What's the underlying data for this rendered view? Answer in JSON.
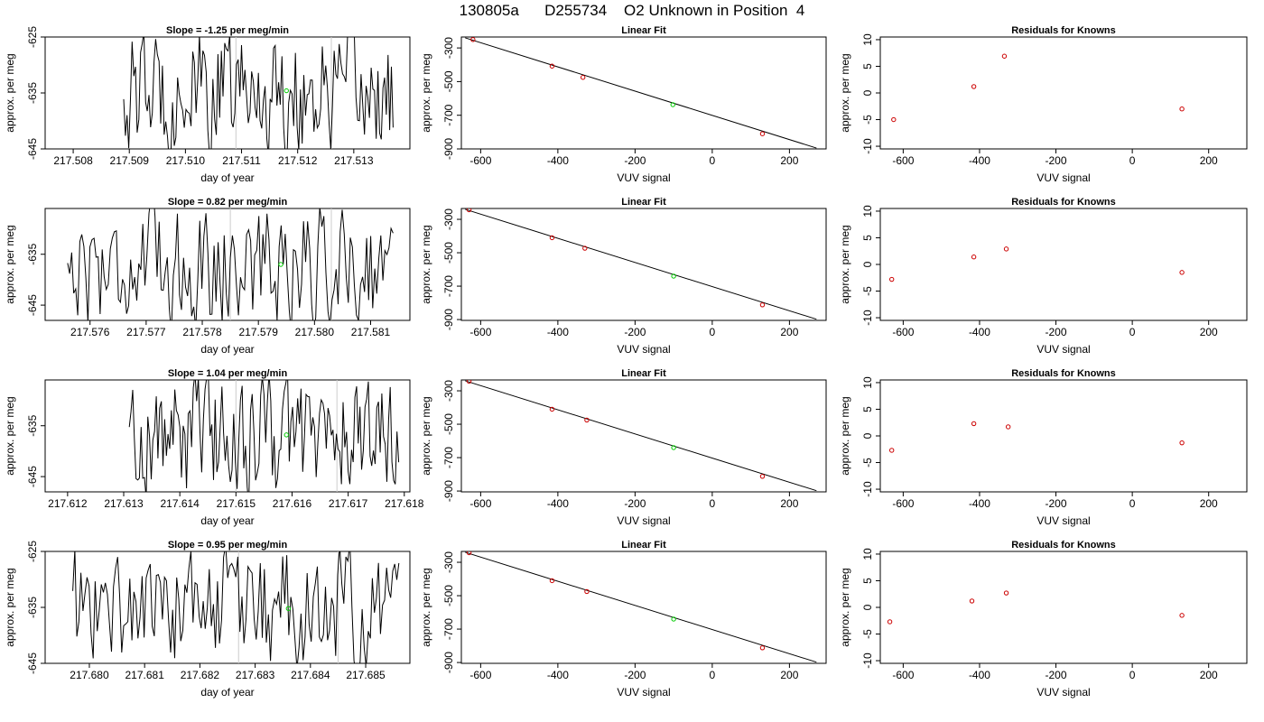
{
  "page": {
    "title": "130805a      D255734    O2 Unknown in Position  4"
  },
  "chart_data": [
    {
      "type": "line",
      "panel": "timeseries",
      "title": "Slope =  -1.25  per meg/min",
      "xlabel": "day of year",
      "ylabel": "approx. per meg",
      "xlim": [
        217.5075,
        217.514
      ],
      "ylim": [
        -645,
        -625
      ],
      "xticks": [
        217.508,
        217.509,
        217.51,
        217.511,
        217.512,
        217.513
      ],
      "xtick_labels": [
        "217.508",
        "217.509",
        "217.510",
        "217.511",
        "217.512",
        "217.513"
      ],
      "yticks": [
        -625,
        -635,
        -645
      ],
      "ytick_labels": [
        "-625",
        "-635",
        "-645"
      ],
      "start_x": 217.5089,
      "end_x": 217.5137,
      "gray_lines": [
        217.5109,
        217.5126
      ],
      "green_point": [
        217.5118,
        -634.6
      ],
      "line_color": "#000000",
      "gray_color": "#cccccc",
      "green_color": "#00cc00"
    },
    {
      "type": "scatter",
      "panel": "fit",
      "title": "Linear Fit",
      "xlabel": "VUV signal",
      "ylabel": "approx. per meg",
      "xlim": [
        -650,
        295
      ],
      "ylim": [
        -900,
        -235
      ],
      "xticks": [
        -600,
        -400,
        -200,
        0,
        200
      ],
      "xtick_labels": [
        "-600",
        "-400",
        "-200",
        "0",
        "200"
      ],
      "yticks": [
        -300,
        -500,
        -700,
        -900
      ],
      "ytick_labels": [
        "-300",
        "-500",
        "-700",
        "-900"
      ],
      "points": [
        [
          -620,
          -250
        ],
        [
          -415,
          -408
        ],
        [
          -335,
          -475
        ],
        [
          130,
          -810
        ]
      ],
      "fit_line": [
        [
          -640,
          -240
        ],
        [
          270,
          -895
        ]
      ],
      "unknown_point": [
        -102,
        -637
      ],
      "point_color": "#cc0000",
      "fit_color": "#000000",
      "unknown_color": "#00cc00"
    },
    {
      "type": "scatter",
      "panel": "residuals",
      "title": "Residuals for Knowns",
      "xlabel": "VUV signal",
      "ylabel": "approx. per meg",
      "xlim": [
        -660,
        300
      ],
      "ylim": [
        -10.5,
        10.5
      ],
      "xticks": [
        -600,
        -400,
        -200,
        0,
        200
      ],
      "xtick_labels": [
        "-600",
        "-400",
        "-200",
        "0",
        "200"
      ],
      "yticks": [
        10,
        5,
        0,
        -5,
        -10
      ],
      "ytick_labels": [
        "10",
        "5",
        "0",
        "-5",
        "-10"
      ],
      "points": [
        [
          -625,
          -5.0
        ],
        [
          -415,
          1.2
        ],
        [
          -335,
          6.9
        ],
        [
          130,
          -3.0
        ]
      ],
      "point_color": "#cc0000"
    },
    {
      "type": "line",
      "panel": "timeseries",
      "title": "Slope =  0.82  per meg/min",
      "xlabel": "day of year",
      "ylabel": "approx. per meg",
      "xlim": [
        217.5752,
        217.5817
      ],
      "ylim": [
        -648,
        -626
      ],
      "xticks": [
        217.576,
        217.577,
        217.578,
        217.579,
        217.58,
        217.581
      ],
      "xtick_labels": [
        "217.576",
        "217.577",
        "217.578",
        "217.579",
        "217.580",
        "217.581"
      ],
      "yticks": [
        -635,
        -645
      ],
      "ytick_labels": [
        "-635",
        "-645"
      ],
      "start_x": 217.5756,
      "end_x": 217.5814,
      "gray_lines": [
        217.5785,
        217.5803
      ],
      "green_point": [
        217.5794,
        -637.0
      ],
      "line_color": "#000000",
      "gray_color": "#cccccc",
      "green_color": "#00cc00"
    },
    {
      "type": "scatter",
      "panel": "fit",
      "title": "Linear Fit",
      "xlabel": "VUV signal",
      "ylabel": "approx. per meg",
      "xlim": [
        -650,
        295
      ],
      "ylim": [
        -905,
        -235
      ],
      "xticks": [
        -600,
        -400,
        -200,
        0,
        200
      ],
      "xtick_labels": [
        "-600",
        "-400",
        "-200",
        "0",
        "200"
      ],
      "yticks": [
        -300,
        -500,
        -700,
        -900
      ],
      "ytick_labels": [
        "-300",
        "-500",
        "-700",
        "-900"
      ],
      "points": [
        [
          -630,
          -243
        ],
        [
          -415,
          -410
        ],
        [
          -330,
          -473
        ],
        [
          130,
          -812
        ]
      ],
      "fit_line": [
        [
          -640,
          -240
        ],
        [
          270,
          -898
        ]
      ],
      "unknown_point": [
        -100,
        -640
      ],
      "point_color": "#cc0000",
      "fit_color": "#000000",
      "unknown_color": "#00cc00"
    },
    {
      "type": "scatter",
      "panel": "residuals",
      "title": "Residuals for Knowns",
      "xlabel": "VUV signal",
      "ylabel": "approx. per meg",
      "xlim": [
        -660,
        300
      ],
      "ylim": [
        -10.5,
        10.5
      ],
      "xticks": [
        -600,
        -400,
        -200,
        0,
        200
      ],
      "xtick_labels": [
        "-600",
        "-400",
        "-200",
        "0",
        "200"
      ],
      "yticks": [
        10,
        5,
        0,
        -5,
        -10
      ],
      "ytick_labels": [
        "10",
        "5",
        "0",
        "-5",
        "-10"
      ],
      "points": [
        [
          -630,
          -2.8
        ],
        [
          -415,
          1.4
        ],
        [
          -330,
          2.9
        ],
        [
          130,
          -1.5
        ]
      ],
      "point_color": "#cc0000"
    },
    {
      "type": "line",
      "panel": "timeseries",
      "title": "Slope =  1.04  per meg/min",
      "xlabel": "day of year",
      "ylabel": "approx. per meg",
      "xlim": [
        217.6116,
        217.6181
      ],
      "ylim": [
        -648,
        -626
      ],
      "xticks": [
        217.612,
        217.613,
        217.614,
        217.615,
        217.616,
        217.617,
        217.618
      ],
      "xtick_labels": [
        "217.612",
        "217.613",
        "217.614",
        "217.615",
        "217.616",
        "217.617",
        "217.618"
      ],
      "yticks": [
        -635,
        -645
      ],
      "ytick_labels": [
        "-635",
        "-645"
      ],
      "start_x": 217.6131,
      "end_x": 217.6179,
      "gray_lines": [
        217.615,
        217.6168
      ],
      "green_point": [
        217.6159,
        -636.8
      ],
      "line_color": "#000000",
      "gray_color": "#cccccc",
      "green_color": "#00cc00"
    },
    {
      "type": "scatter",
      "panel": "fit",
      "title": "Linear Fit",
      "xlabel": "VUV signal",
      "ylabel": "approx. per meg",
      "xlim": [
        -650,
        295
      ],
      "ylim": [
        -905,
        -235
      ],
      "xticks": [
        -600,
        -400,
        -200,
        0,
        200
      ],
      "xtick_labels": [
        "-600",
        "-400",
        "-200",
        "0",
        "200"
      ],
      "yticks": [
        -300,
        -500,
        -700,
        -900
      ],
      "ytick_labels": [
        "-300",
        "-500",
        "-700",
        "-900"
      ],
      "points": [
        [
          -630,
          -243
        ],
        [
          -415,
          -410
        ],
        [
          -325,
          -475
        ],
        [
          130,
          -812
        ]
      ],
      "fit_line": [
        [
          -640,
          -240
        ],
        [
          270,
          -898
        ]
      ],
      "unknown_point": [
        -100,
        -640
      ],
      "point_color": "#cc0000",
      "fit_color": "#000000",
      "unknown_color": "#00cc00"
    },
    {
      "type": "scatter",
      "panel": "residuals",
      "title": "Residuals for Knowns",
      "xlabel": "VUV signal",
      "ylabel": "approx. per meg",
      "xlim": [
        -660,
        300
      ],
      "ylim": [
        -10.5,
        10.5
      ],
      "xticks": [
        -600,
        -400,
        -200,
        0,
        200
      ],
      "xtick_labels": [
        "-600",
        "-400",
        "-200",
        "0",
        "200"
      ],
      "yticks": [
        10,
        5,
        0,
        -5,
        -10
      ],
      "ytick_labels": [
        "10",
        "5",
        "0",
        "-5",
        "-10"
      ],
      "points": [
        [
          -630,
          -2.7
        ],
        [
          -415,
          2.3
        ],
        [
          -325,
          1.7
        ],
        [
          130,
          -1.3
        ]
      ],
      "point_color": "#cc0000"
    },
    {
      "type": "line",
      "panel": "timeseries",
      "title": "Slope =  0.95  per meg/min",
      "xlabel": "day of year",
      "ylabel": "approx. per meg",
      "xlim": [
        217.6792,
        217.6858
      ],
      "ylim": [
        -645,
        -625
      ],
      "xticks": [
        217.68,
        217.681,
        217.682,
        217.683,
        217.684,
        217.685
      ],
      "xtick_labels": [
        "217.680",
        "217.681",
        "217.682",
        "217.683",
        "217.684",
        "217.685"
      ],
      "yticks": [
        -625,
        -635,
        -645
      ],
      "ytick_labels": [
        "-625",
        "-635",
        "-645"
      ],
      "start_x": 217.6797,
      "end_x": 217.6856,
      "gray_lines": [
        217.6827,
        217.6845
      ],
      "green_point": [
        217.6836,
        -635.2
      ],
      "line_color": "#000000",
      "gray_color": "#cccccc",
      "green_color": "#00cc00"
    },
    {
      "type": "scatter",
      "panel": "fit",
      "title": "Linear Fit",
      "xlabel": "VUV signal",
      "ylabel": "approx. per meg",
      "xlim": [
        -650,
        295
      ],
      "ylim": [
        -905,
        -235
      ],
      "xticks": [
        -600,
        -400,
        -200,
        0,
        200
      ],
      "xtick_labels": [
        "-600",
        "-400",
        "-200",
        "0",
        "200"
      ],
      "yticks": [
        -300,
        -500,
        -700,
        -900
      ],
      "ytick_labels": [
        "-300",
        "-500",
        "-700",
        "-900"
      ],
      "points": [
        [
          -630,
          -243
        ],
        [
          -415,
          -410
        ],
        [
          -325,
          -475
        ],
        [
          130,
          -812
        ]
      ],
      "fit_line": [
        [
          -640,
          -240
        ],
        [
          270,
          -898
        ]
      ],
      "unknown_point": [
        -100,
        -640
      ],
      "point_color": "#cc0000",
      "fit_color": "#000000",
      "unknown_color": "#00cc00"
    },
    {
      "type": "scatter",
      "panel": "residuals",
      "title": "Residuals for Knowns",
      "xlabel": "VUV signal",
      "ylabel": "approx. per meg",
      "xlim": [
        -660,
        300
      ],
      "ylim": [
        -10.5,
        10.5
      ],
      "xticks": [
        -600,
        -400,
        -200,
        0,
        200
      ],
      "xtick_labels": [
        "-600",
        "-400",
        "-200",
        "0",
        "200"
      ],
      "yticks": [
        10,
        5,
        0,
        -5,
        -10
      ],
      "ytick_labels": [
        "10",
        "5",
        "0",
        "-5",
        "-10"
      ],
      "points": [
        [
          -635,
          -2.7
        ],
        [
          -420,
          1.2
        ],
        [
          -330,
          2.7
        ],
        [
          130,
          -1.5
        ]
      ],
      "point_color": "#cc0000"
    }
  ]
}
